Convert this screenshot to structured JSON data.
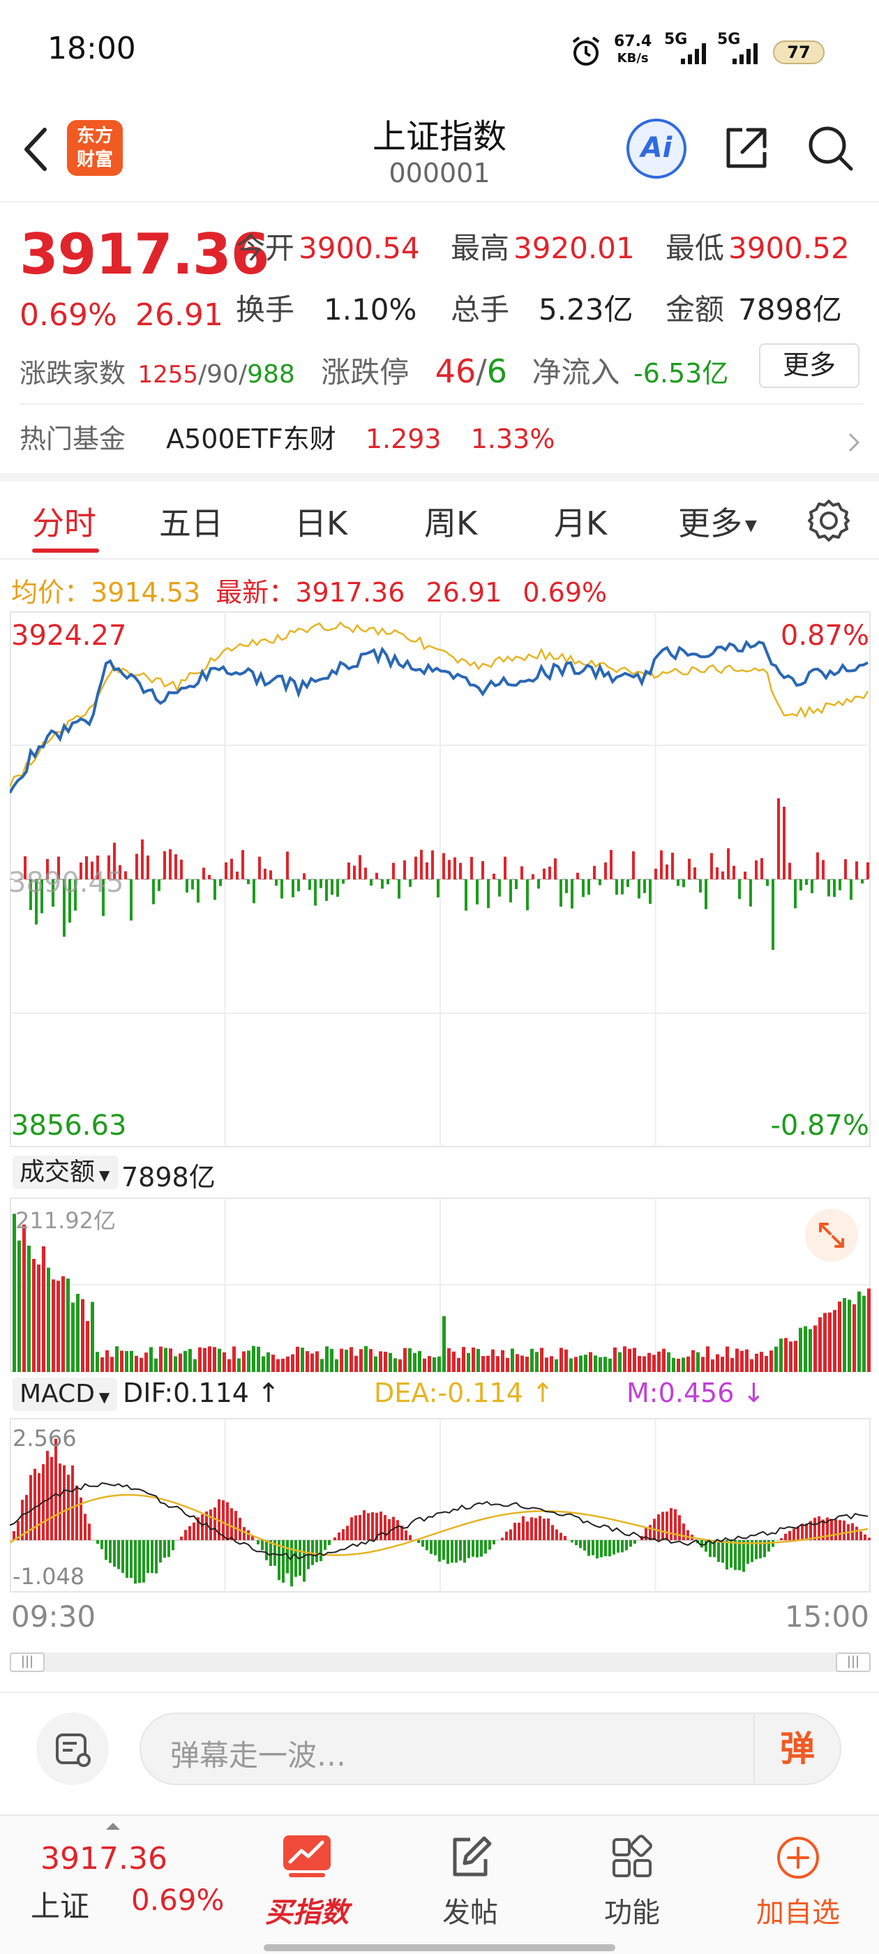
{
  "status_bar": {
    "time": "18:00",
    "net_speed": "67.4",
    "net_unit": "KB/s",
    "sig1": "5G",
    "sig2": "5G",
    "battery": "77"
  },
  "header": {
    "title": "上证指数",
    "code": "000001",
    "logo_line1": "东方",
    "logo_line2": "财富",
    "ai_label": "Ai"
  },
  "quote": {
    "price": "3917.36",
    "pct": "0.69%",
    "change": "26.91",
    "open_label": "今开",
    "open": "3900.54",
    "high_label": "最高",
    "high": "3920.01",
    "low_label": "最低",
    "low": "3900.52",
    "turnover_label": "换手",
    "turnover": "1.10%",
    "volume_label": "总手",
    "volume": "5.23亿",
    "amount_label": "金额",
    "amount": "7898亿"
  },
  "breadth": {
    "label": "涨跌家数",
    "up": "1255",
    "sep1": "/",
    "flat": "90",
    "sep2": "/",
    "down": "988",
    "limit_label": "涨跌停",
    "limit_up": "46",
    "limit_sep": "/",
    "limit_down": "6",
    "net_label": "净流入",
    "net_value": "-6.53亿",
    "more": "更多"
  },
  "fund": {
    "label": "热门基金",
    "name": "A500ETF东财",
    "price": "1.293",
    "pct": "1.33%"
  },
  "tabs": [
    "分时",
    "五日",
    "日K",
    "周K",
    "月K",
    "更多"
  ],
  "avg_row": {
    "avg_label": "均价：",
    "avg_value": "3914.53",
    "latest_label": "最新：",
    "latest_value": "3917.36",
    "change": "26.91",
    "pct": "0.69%"
  },
  "intraday": {
    "top_price": "3924.27",
    "top_pct": "0.87%",
    "bottom_price": "3856.63",
    "bottom_pct": "-0.87%",
    "mid_price": "3890.45"
  },
  "volume_panel": {
    "selector": "成交额",
    "total": "7898亿",
    "max_label": "211.92亿"
  },
  "macd": {
    "selector": "MACD",
    "dif": "DIF:0.114 ↑",
    "dea": "DEA:-0.114 ↑",
    "m": "M:0.456 ↓",
    "top": "2.566",
    "bottom": "-1.048"
  },
  "time_axis": {
    "start": "09:30",
    "end": "15:00"
  },
  "comment_bar": {
    "placeholder": "弹幕走一波…",
    "danmu": "弹"
  },
  "bottom_nav": {
    "index_price": "3917.36",
    "index_name": "上证",
    "index_pct": "0.69%",
    "buy": "买指数",
    "post": "发帖",
    "func": "功能",
    "add": "加自选"
  },
  "colors": {
    "up": "#e0242b",
    "down": "#1e9c1e",
    "price_line": "#2a67b5",
    "avg_line": "#e6b422",
    "dea": "#e6b422",
    "m": "#c23fd6",
    "accent": "#f15a22"
  }
}
